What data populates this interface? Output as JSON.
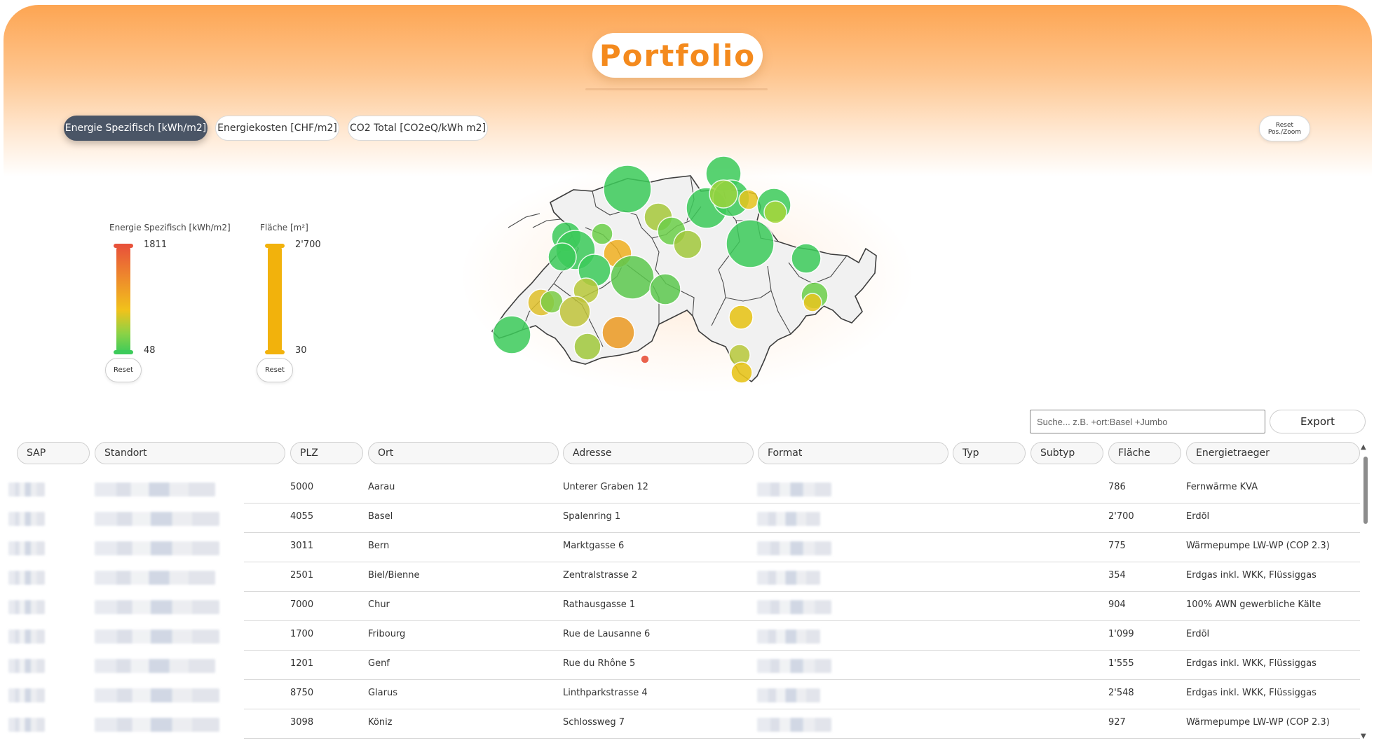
{
  "title": "Portfolio",
  "metric_tabs": [
    {
      "label": "Energie Spezifisch [kWh/m2]",
      "active": true
    },
    {
      "label": "Energiekosten [CHF/m2]",
      "active": false
    },
    {
      "label": "CO2 Total [CO2eQ/kWh m2]",
      "active": false
    }
  ],
  "reset_zoom": {
    "line1": "Reset",
    "line2": "Pos./Zoom"
  },
  "legends": [
    {
      "label": "Energie Spezifisch [kWh/m2]",
      "max": "1811",
      "min": "48",
      "reset": "Reset",
      "colors": [
        "#e8523a",
        "#f1c21b",
        "#3ccb5a"
      ]
    },
    {
      "label": "Fläche [m²]",
      "max": "2'700",
      "min": "30",
      "reset": "Reset",
      "colors": [
        "#f2b20c"
      ]
    }
  ],
  "search": {
    "placeholder": "Suche... z.B. +ort:Basel +Jumbo",
    "value": ""
  },
  "export_label": "Export",
  "columns": [
    "SAP",
    "Standort",
    "PLZ",
    "Ort",
    "Adresse",
    "Format",
    "Typ",
    "Subtyp",
    "Fläche",
    "Energietraeger"
  ],
  "rows": [
    {
      "plz": "5000",
      "ort": "Aarau",
      "adresse": "Unterer Graben 12",
      "flaeche": "786",
      "energie": "Fernwärme KVA"
    },
    {
      "plz": "4055",
      "ort": "Basel",
      "adresse": "Spalenring 1",
      "flaeche": "2'700",
      "energie": "Erdöl"
    },
    {
      "plz": "3011",
      "ort": "Bern",
      "adresse": "Marktgasse 6",
      "flaeche": "775",
      "energie": "Wärmepumpe LW-WP (COP 2.3)"
    },
    {
      "plz": "2501",
      "ort": "Biel/Bienne",
      "adresse": "Zentralstrasse 2",
      "flaeche": "354",
      "energie": "Erdgas inkl. WKK, Flüssiggas"
    },
    {
      "plz": "7000",
      "ort": "Chur",
      "adresse": "Rathausgasse 1",
      "flaeche": "904",
      "energie": "100% AWN gewerbliche Kälte"
    },
    {
      "plz": "1700",
      "ort": "Fribourg",
      "adresse": "Rue de Lausanne 6",
      "flaeche": "1'099",
      "energie": "Erdöl"
    },
    {
      "plz": "1201",
      "ort": "Genf",
      "adresse": "Rue du Rhône 5",
      "flaeche": "1'555",
      "energie": "Erdgas inkl. WKK, Flüssiggas"
    },
    {
      "plz": "8750",
      "ort": "Glarus",
      "adresse": "Linthparkstrasse 4",
      "flaeche": "2'548",
      "energie": "Erdgas inkl. WKK, Flüssiggas"
    },
    {
      "plz": "3098",
      "ort": "Köniz",
      "adresse": "Schlossweg 7",
      "flaeche": "927",
      "energie": "Wärmepumpe LW-WP (COP 2.3)"
    }
  ],
  "map_markers_colors": {
    "green": "#3ccb5a",
    "yellow": "#e8c51e",
    "orange": "#f0a020",
    "red": "#e8523a"
  }
}
